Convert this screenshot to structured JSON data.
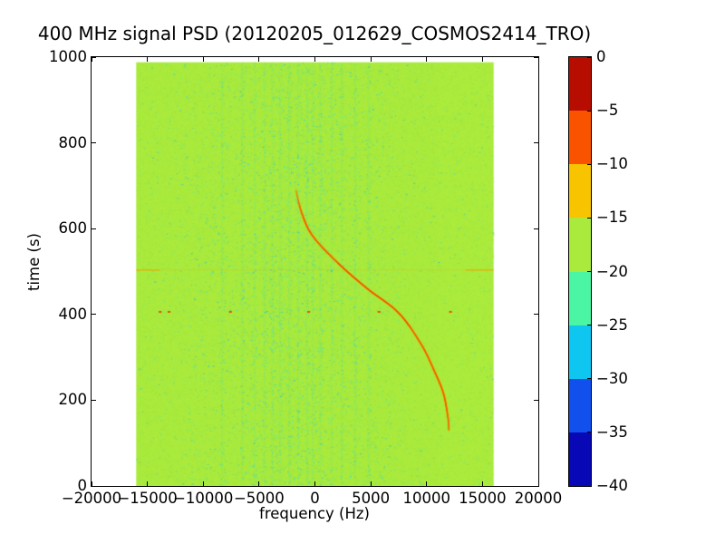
{
  "chart_data": {
    "type": "heatmap",
    "title": "400 MHz signal PSD (20120205_012629_COSMOS2414_TRO)",
    "xlabel": "frequency (Hz)",
    "ylabel": "time (s)",
    "xlim": [
      -20000,
      20000
    ],
    "ylim": [
      0,
      1000
    ],
    "xticks": [
      -20000,
      -15000,
      -10000,
      -5000,
      0,
      5000,
      10000,
      15000,
      20000
    ],
    "yticks": [
      0,
      200,
      400,
      600,
      800,
      1000
    ],
    "grid": false,
    "legend": "none",
    "data_extent": {
      "f_min": -16000,
      "f_max": 16000,
      "t_min": 0,
      "t_max": 988
    },
    "background_level": {
      "db_band": [
        -20,
        -15
      ],
      "color": "#a9ea3c"
    },
    "colorbar": {
      "position": "right",
      "ticks": [
        0,
        -5,
        -10,
        -15,
        -20,
        -25,
        -30,
        -35,
        -40
      ],
      "band_colors_top_to_bottom": [
        "#b70d01",
        "#fa5300",
        "#f8c400",
        "#a9ea3c",
        "#4af5a3",
        "#0fc6f1",
        "#1250ee",
        "#0808b6"
      ]
    },
    "doppler_track": {
      "description": "satellite Doppler curve, power ~ -5 to -10 dB",
      "core_color": "#ee5f00",
      "glow_color": "#f2b600",
      "hot_color": "#e64000",
      "points_t_f": [
        [
          130,
          11980
        ],
        [
          158,
          11920
        ],
        [
          215,
          11515
        ],
        [
          267,
          10710
        ],
        [
          331,
          9500
        ],
        [
          404,
          7480
        ],
        [
          461,
          4650
        ],
        [
          520,
          2060
        ],
        [
          583,
          -200
        ],
        [
          636,
          -1170
        ],
        [
          690,
          -1700
        ]
      ],
      "full_bright_t": [
        185,
        620
      ],
      "visible_t": [
        118,
        700
      ]
    },
    "interference_line": {
      "t": 505,
      "color": "#f7a000",
      "faint_alpha": 0.22,
      "strong_alpha": 0.75,
      "strong_segments_f": [
        [
          -16000,
          -13900
        ],
        [
          13500,
          16000
        ]
      ]
    },
    "interference_dots": {
      "t": 406,
      "color": "#e84200",
      "frequencies": [
        -13900,
        -13100,
        -7600,
        -600,
        5700,
        12100
      ]
    },
    "noise": {
      "seed": 42,
      "bg_color": "#a9ea3c",
      "bright_color": "#c0f74c",
      "dark_color": "#9bdc38",
      "speckle_colors": [
        "#55efa0",
        "#2bd9d9",
        "#12bfef",
        "#7de06a"
      ],
      "dense_center_f": -1800,
      "dense_sigma_f": 2600,
      "plateau_f": [
        -11500,
        7000
      ],
      "stripe_fs": [
        -8300,
        -6500,
        -5400,
        -4500,
        -3800,
        -3100,
        -2300,
        -1500,
        -700,
        -200,
        500,
        1500,
        2400,
        3600,
        4800
      ],
      "bright_band_f": [
        11000,
        16000
      ]
    }
  }
}
